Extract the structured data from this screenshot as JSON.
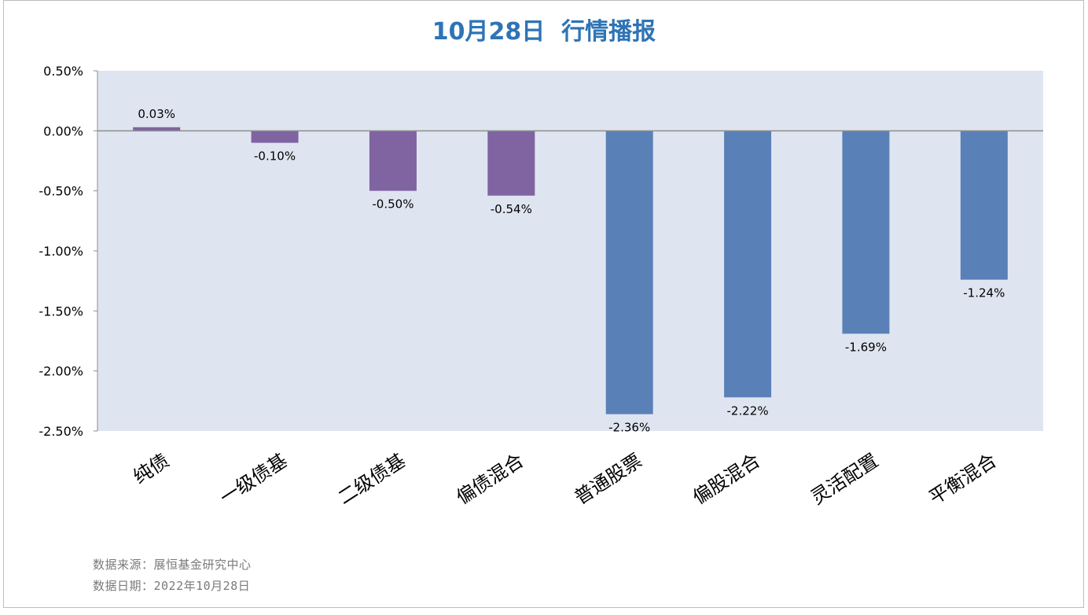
{
  "chart_data": {
    "type": "bar",
    "title": "10月28日  行情播报",
    "categories": [
      "纯债",
      "一级债基",
      "二级债基",
      "偏债混合",
      "普通股票",
      "偏股混合",
      "灵活配置",
      "平衡混合"
    ],
    "values": [
      0.03,
      -0.1,
      -0.5,
      -0.54,
      -2.36,
      -2.22,
      -1.69,
      -1.24
    ],
    "data_labels": [
      "0.03%",
      "-0.10%",
      "-0.50%",
      "-0.54%",
      "-2.36%",
      "-2.22%",
      "-1.69%",
      "-1.24%"
    ],
    "bar_colors": [
      "#8064a2",
      "#8064a2",
      "#8064a2",
      "#8064a2",
      "#5a80b8",
      "#5a80b8",
      "#5a80b8",
      "#5a80b8"
    ],
    "ylim": [
      -2.5,
      0.5
    ],
    "yticks": [
      0.5,
      0.0,
      -0.5,
      -1.0,
      -1.5,
      -2.0,
      -2.5
    ],
    "ytick_labels": [
      "0.50%",
      "0.00%",
      "-0.50%",
      "-1.00%",
      "-1.50%",
      "-2.00%",
      "-2.50%"
    ],
    "plot_background": "#dfe5f0",
    "title_color": "#2e74b5",
    "grid": false,
    "legend": "none"
  },
  "footer": {
    "source": "数据来源：展恒基金研究中心",
    "date": "数据日期：2022年10月28日"
  }
}
